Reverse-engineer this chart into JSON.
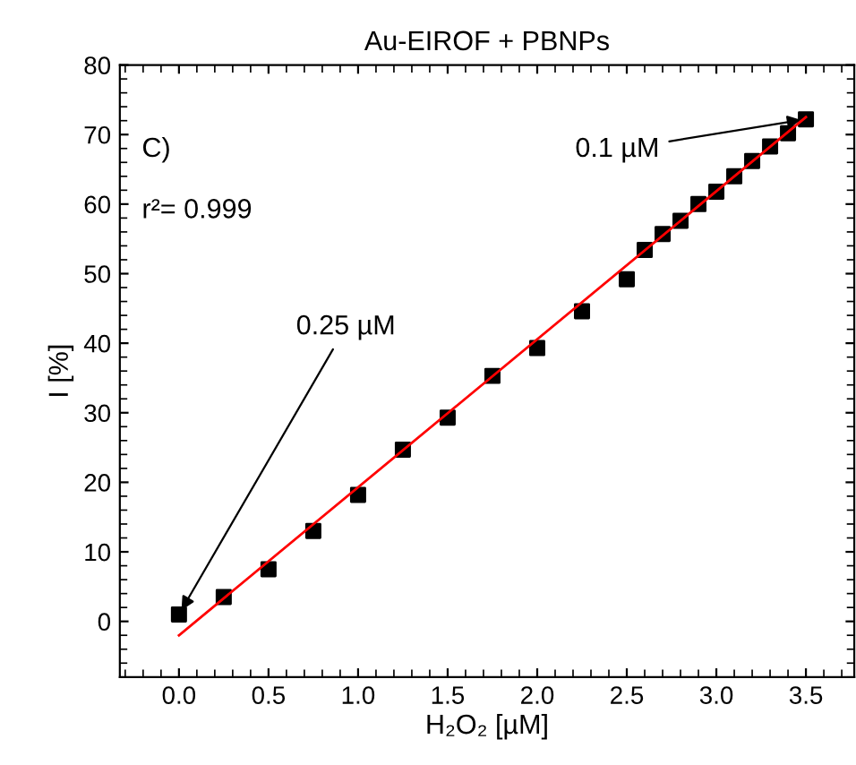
{
  "chart_data": {
    "type": "scatter",
    "title": "Au-EIROF + PBNPs",
    "xlabel": "H₂O₂ [µM]",
    "ylabel": "I [%]",
    "x": [
      0,
      0.25,
      0.5,
      0.75,
      1.0,
      1.25,
      1.5,
      1.75,
      2.0,
      2.25,
      2.5,
      2.6,
      2.7,
      2.8,
      2.9,
      3.0,
      3.1,
      3.2,
      3.3,
      3.4,
      3.5
    ],
    "series": [
      {
        "color": "#000000",
        "marker": "square",
        "values": [
          1.0,
          3.5,
          7.5,
          13.0,
          18.2,
          24.7,
          29.3,
          35.3,
          39.3,
          44.6,
          49.2,
          53.4,
          55.7,
          57.6,
          60.0,
          61.8,
          64.0,
          66.2,
          68.3,
          70.2,
          72.2
        ]
      },
      {
        "type": "line",
        "color": "#ff0000",
        "marker": "none",
        "x": [
          0,
          3.5
        ],
        "values": [
          -2.0,
          72.5
        ]
      }
    ],
    "annotations": [
      "C)",
      "r²= 0.999",
      {
        "text": "0.25 µM",
        "x": 0,
        "y": 1.0
      },
      {
        "text": "0.1 µM",
        "x": 3.5,
        "y": 72.2
      }
    ],
    "xlim": [
      -0.33,
      3.77
    ],
    "ylim": [
      -8,
      80
    ],
    "xticks": [
      {
        "value": 0,
        "label": "0.0"
      },
      0.5,
      {
        "value": 1,
        "label": "1.0"
      },
      1.5,
      {
        "value": 2,
        "label": "2.0"
      },
      2.5,
      {
        "value": 3,
        "label": "3.0"
      },
      3.5
    ],
    "yticks": [
      0,
      10,
      20,
      30,
      40,
      50,
      60,
      70,
      80
    ],
    "grid": false,
    "legend": false
  }
}
